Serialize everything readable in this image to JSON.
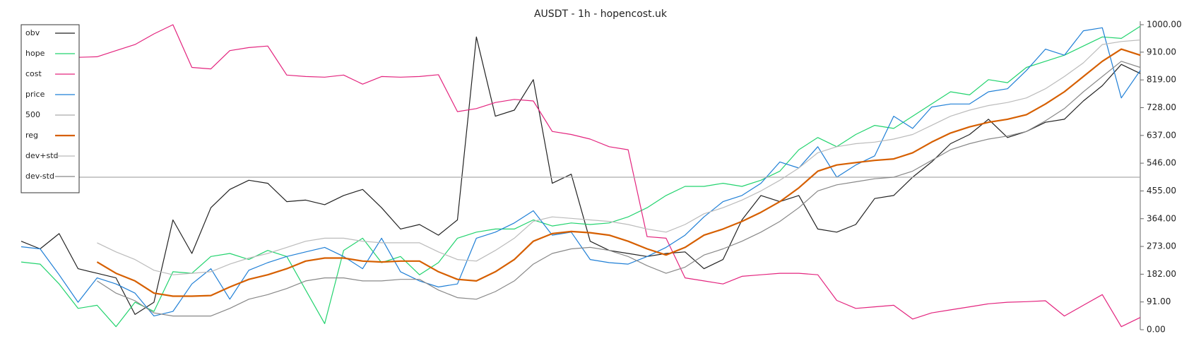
{
  "chart_data": {
    "type": "line",
    "title": "AUSDT - 1h - hopencost.uk",
    "ylim": [
      0,
      1000
    ],
    "yticks": [
      {
        "value": 0,
        "label": "0.00"
      },
      {
        "value": 91,
        "label": "91.00"
      },
      {
        "value": 182,
        "label": "182.00"
      },
      {
        "value": 273,
        "label": "273.00"
      },
      {
        "value": 364,
        "label": "364.00"
      },
      {
        "value": 455,
        "label": "455.00"
      },
      {
        "value": 546,
        "label": "546.00"
      },
      {
        "value": 637,
        "label": "637.00"
      },
      {
        "value": 728,
        "label": "728.00"
      },
      {
        "value": 819,
        "label": "819.00"
      },
      {
        "value": 910,
        "label": "910.00"
      },
      {
        "value": 1000,
        "label": "1000.00"
      }
    ],
    "legend": "upper left",
    "series": [
      {
        "name": "obv",
        "color": "#222222",
        "width": 1.2,
        "values": [
          290,
          265,
          315,
          200,
          185,
          170,
          50,
          90,
          360,
          250,
          400,
          460,
          490,
          480,
          420,
          425,
          410,
          440,
          460,
          400,
          330,
          345,
          310,
          360,
          960,
          700,
          720,
          820,
          480,
          510,
          290,
          260,
          250,
          240,
          250,
          255,
          200,
          230,
          360,
          440,
          420,
          440,
          330,
          320,
          345,
          430,
          440,
          500,
          550,
          610,
          640,
          690,
          630,
          650,
          680,
          690,
          750,
          800,
          870,
          840
        ]
      },
      {
        "name": "hope",
        "color": "#22d36e",
        "width": 1.2,
        "values": [
          222,
          215,
          150,
          70,
          80,
          10,
          90,
          60,
          190,
          185,
          240,
          250,
          230,
          260,
          240,
          130,
          20,
          260,
          300,
          220,
          240,
          180,
          220,
          300,
          320,
          330,
          330,
          360,
          340,
          350,
          345,
          350,
          370,
          400,
          440,
          470,
          470,
          480,
          470,
          490,
          520,
          590,
          630,
          600,
          640,
          670,
          660,
          700,
          740,
          780,
          770,
          820,
          810,
          860,
          880,
          900,
          930,
          960,
          955,
          995
        ]
      },
      {
        "name": "cost",
        "color": "#e3247e",
        "width": 1.2,
        "values": [
          899,
          897,
          895,
          893,
          895,
          915,
          935,
          970,
          1000,
          860,
          855,
          915,
          925,
          930,
          835,
          830,
          828,
          835,
          805,
          830,
          828,
          830,
          836,
          715,
          725,
          745,
          755,
          750,
          650,
          640,
          625,
          600,
          590,
          305,
          300,
          170,
          160,
          150,
          175,
          180,
          185,
          185,
          180,
          96,
          70,
          75,
          80,
          35,
          55,
          65,
          75,
          85,
          90,
          92,
          95,
          45,
          80,
          115,
          10,
          40
        ]
      },
      {
        "name": "price",
        "color": "#1f7fd6",
        "width": 1.2,
        "values": [
          272,
          265,
          180,
          90,
          170,
          150,
          120,
          45,
          60,
          150,
          200,
          100,
          195,
          220,
          240,
          255,
          270,
          240,
          200,
          300,
          190,
          160,
          140,
          150,
          300,
          320,
          350,
          390,
          310,
          320,
          230,
          220,
          215,
          240,
          270,
          310,
          370,
          420,
          440,
          480,
          550,
          530,
          600,
          500,
          540,
          570,
          700,
          660,
          730,
          740,
          740,
          780,
          790,
          850,
          920,
          900,
          980,
          990,
          760,
          850
        ]
      },
      {
        "name": "500",
        "color": "#aaaaaa",
        "width": 1.2,
        "values": [
          500,
          500,
          500,
          500,
          500,
          500,
          500,
          500,
          500,
          500,
          500,
          500,
          500,
          500,
          500,
          500,
          500,
          500,
          500,
          500,
          500,
          500,
          500,
          500,
          500,
          500,
          500,
          500,
          500,
          500,
          500,
          500,
          500,
          500,
          500,
          500,
          500,
          500,
          500,
          500,
          500,
          500,
          500,
          500,
          500,
          500,
          500,
          500,
          500,
          500,
          500,
          500,
          500,
          500,
          500,
          500,
          500,
          500,
          500,
          500
        ]
      },
      {
        "name": "reg",
        "color": "#d65f00",
        "width": 2.2,
        "values": [
          null,
          null,
          null,
          null,
          222,
          185,
          160,
          120,
          110,
          110,
          112,
          140,
          165,
          180,
          200,
          225,
          235,
          235,
          225,
          222,
          225,
          225,
          190,
          165,
          160,
          190,
          230,
          290,
          315,
          322,
          318,
          310,
          290,
          265,
          245,
          270,
          310,
          330,
          355,
          385,
          420,
          465,
          520,
          540,
          548,
          555,
          560,
          580,
          615,
          645,
          665,
          680,
          690,
          705,
          740,
          780,
          830,
          880,
          920,
          900
        ]
      },
      {
        "name": "dev+std",
        "color": "#bbbbbb",
        "width": 1.2,
        "values": [
          null,
          null,
          null,
          null,
          285,
          255,
          230,
          195,
          180,
          185,
          190,
          215,
          235,
          250,
          270,
          290,
          300,
          300,
          290,
          285,
          285,
          285,
          255,
          230,
          225,
          260,
          300,
          355,
          370,
          365,
          360,
          355,
          345,
          330,
          320,
          345,
          380,
          400,
          425,
          455,
          490,
          530,
          580,
          600,
          610,
          615,
          625,
          640,
          670,
          700,
          720,
          735,
          745,
          760,
          790,
          830,
          875,
          935,
          945,
          950
        ]
      },
      {
        "name": "dev-std",
        "color": "#888888",
        "width": 1.2,
        "values": [
          null,
          null,
          null,
          null,
          160,
          120,
          95,
          55,
          45,
          45,
          45,
          70,
          100,
          115,
          135,
          160,
          170,
          170,
          160,
          160,
          165,
          165,
          130,
          105,
          100,
          125,
          160,
          215,
          250,
          265,
          270,
          260,
          240,
          210,
          185,
          205,
          245,
          265,
          290,
          320,
          355,
          400,
          455,
          475,
          485,
          495,
          500,
          520,
          555,
          590,
          610,
          625,
          635,
          650,
          685,
          725,
          780,
          830,
          880,
          860
        ]
      }
    ]
  }
}
